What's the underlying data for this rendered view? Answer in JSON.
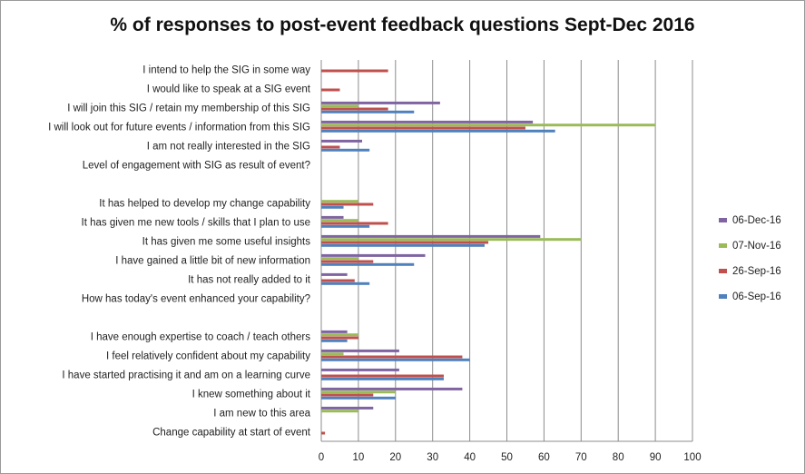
{
  "chart_data": {
    "type": "bar",
    "orientation": "horizontal",
    "title": "% of responses to post-event feedback questions Sept-Dec 2016",
    "xlabel": "",
    "ylabel": "",
    "xlim": [
      0,
      100
    ],
    "x_ticks": [
      "0",
      "10",
      "20",
      "30",
      "40",
      "50",
      "60",
      "70",
      "80",
      "90",
      "100"
    ],
    "grid": true,
    "legend_position": "right",
    "categories": [
      "I intend to help the SIG in some way",
      "I would like to speak at a SIG event",
      "I will join this SIG / retain my membership of this SIG",
      "I will look out for future events / information from this SIG",
      "I am not really interested in the SIG",
      "Level of engagement with SIG as result of event?",
      "",
      "It has helped to develop my change capability",
      "It has given me new tools / skills that I plan to use",
      "It has given me some useful insights",
      "I have gained a little bit of new information",
      "It has not really added to it",
      "How has today's event enhanced your capability?",
      "",
      "I have enough expertise to coach / teach others",
      "I feel relatively confident about my capability",
      "I have started practising it and am on a learning curve",
      "I knew something about it",
      "I am new to this area",
      "Change capability at start of event"
    ],
    "series": [
      {
        "name": "06-Dec-16",
        "color": "#8064a2",
        "values": [
          0,
          0,
          32,
          57,
          11,
          0,
          0,
          0,
          6,
          59,
          28,
          7,
          0,
          0,
          7,
          21,
          21,
          38,
          14,
          0
        ]
      },
      {
        "name": "07-Nov-16",
        "color": "#9bbb59",
        "values": [
          0,
          0,
          10,
          90,
          0,
          0,
          0,
          10,
          10,
          70,
          10,
          0,
          0,
          0,
          10,
          6,
          0,
          20,
          10,
          0
        ]
      },
      {
        "name": "26-Sep-16",
        "color": "#c0504d",
        "values": [
          18,
          5,
          18,
          55,
          5,
          0,
          0,
          14,
          18,
          45,
          14,
          9,
          0,
          0,
          10,
          38,
          33,
          14,
          0,
          1
        ]
      },
      {
        "name": "06-Sep-16",
        "color": "#4f81bd",
        "values": [
          0,
          0,
          25,
          63,
          13,
          0,
          0,
          6,
          13,
          44,
          25,
          13,
          0,
          0,
          7,
          40,
          33,
          20,
          0,
          0
        ]
      }
    ]
  }
}
